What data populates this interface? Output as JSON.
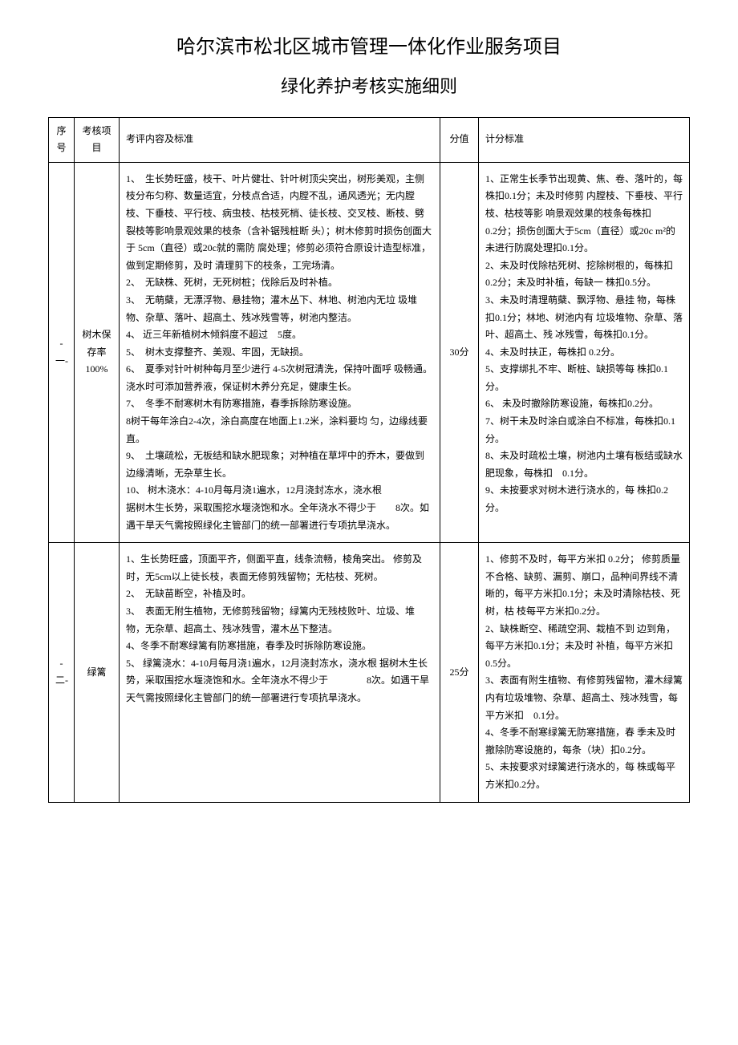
{
  "title": "哈尔滨市松北区城市管理一体化作业服务项目",
  "subtitle": "绿化养护考核实施细则",
  "headers": {
    "seq": "序号",
    "item": "考核项目",
    "content": "考评内容及标准",
    "score": "分值",
    "criteria": "计分标准"
  },
  "rows": [
    {
      "seq": "-一-",
      "item": "树木保存率100%",
      "content": "1、　生长势旺盛，枝干、叶片健壮、针叶树顶尖突出，树形美观，主侧枝分布匀称、数量适宜，分枝点合适，内膛不乱，通风透光；无内膛枝、下垂枝、平行枝、病虫枝、枯枝死梢、徒长枝、交叉枝、断枝、劈裂枝等影响景观效果的枝条（含补锯残桩断 头）；树木修剪时损伤创面大于 5cm（直径）或20c就的需防 腐处理；修剪必须符合原设计造型标准，做到定期修剪，及时 清理剪下的枝条，工完场清。\n2、　无缺株、死树，无死树桩；伐除后及时补植。\n3、　无萌蘖，无漂浮物、悬挂物；灌木丛下、林地、树池内无垃 圾堆物、杂草、落叶、超高土、残冰残雪等，树池内整洁。\n4、 近三年新植树木倾斜度不超过　5度。\n5、　树木支撑整齐、美观、牢固，无缺损。\n6、　夏季对针叶树种每月至少进行 4-5次树冠清洗，保持叶面呼 吸畅通。浇水时可添加营养液，保证树木养分充足，健康生长。\n7、　冬季不耐寒树木有防寒措施，春季拆除防寒设施。\n8树干每年涂白2-4次，涂白高度在地面上1.2米，涂料要均 匀，边缘线要直。\n9、　土壤疏松，无板结和缺水肥现象；对种植在草坪中的乔木，要做到边缘清晰，无杂草生长。\n10、 树木浇水：4-10月每月浇1遍水，12月浇封冻水，浇水根\n据树木生长势，采取围挖水堰浇饱和水。全年浇水不得少于　　8次。如遇干旱天气需按照绿化主管部门的统一部署进行专项抗旱浇水。",
      "score": "30分",
      "criteria": "1、正常生长季节出现黄、焦、卷、落叶的，每株扣0.1分；未及时修剪 内膛枝、下垂枝、平行枝、枯枝等影 响景观效果的枝条每株扣　　　0.2分；损伤创面大于5cm（直径）或20c m²的 未进行防腐处理扣0.1分。\n2、未及时伐除枯死树、挖除树根的，每株扣0.2分；未及时补植，每缺一 株扣0.5分。\n3、未及时清理萌蘖、飘浮物、悬挂 物，每株扣0.1分；林地、树池内有 垃圾堆物、杂草、落叶、超高土、残 冰残雪，每株扣0.1分。\n4、未及时扶正，每株扣 0.2分。\n5、支撑绑扎不牢、断桩、缺损等每 株扣0.1分。\n6、 未及时撤除防寒设施，每株扣0.2分。\n7、树干未及时涂白或涂白不标准，每株扣0.1分。\n8、未及时疏松土壤，树池内土壤有板结或缺水肥现象，每株扣　0.1分。\n9、未按要求对树木进行浇水的，每 株扣0.2分。"
    },
    {
      "seq": "-二-",
      "item": "绿篱",
      "content": "1、生长势旺盛，顶面平齐，侧面平直，线条流畅，棱角突出。 修剪及时，无5cm以上徒长枝，表面无修剪残留物；无枯枝、死树。\n2、　无缺苗断空，补植及时。\n3、　表面无附生植物，无修剪残留物；绿篱内无残枝败叶、垃圾、堆物，无杂草、超高土、残冰残雪，灌木丛下整洁。\n4、冬季不耐寒绿篱有防寒措施，春季及时拆除防寒设施。\n5、 绿篱浇水：4-10月每月浇1遍水，12月浇封冻水，浇水根 据树木生长势，采取围挖水堰浇饱和水。全年浇水不得少于　　　　8次。如遇干旱天气需按照绿化主管部门的统一部署进行专项抗旱浇水。",
      "score": "25分",
      "criteria": "1、修剪不及时，每平方米扣 0.2分； 修剪质量不合格、缺剪、漏剪、崩口，品种间界线不清晰的，每平方米扣0.1分；未及时清除枯枝、死树，枯 枝每平方米扣0.2分。\n2、缺株断空、稀疏空洞、栽植不到 边到角，每平方米扣0.1分；未及时 补植，每平方米扣0.5分。\n3、表面有附生植物、有修剪残留物，灌木绿篱内有垃圾堆物、杂草、超高土、残冰残雪，每平方米扣　0.1分。\n4、冬季不耐寒绿篱无防寒措施，春 季未及时撤除防寒设施的，每条（块）扣0.2分。\n5、未按要求对绿篱进行浇水的，每 株或每平方米扣0.2分。"
    }
  ]
}
